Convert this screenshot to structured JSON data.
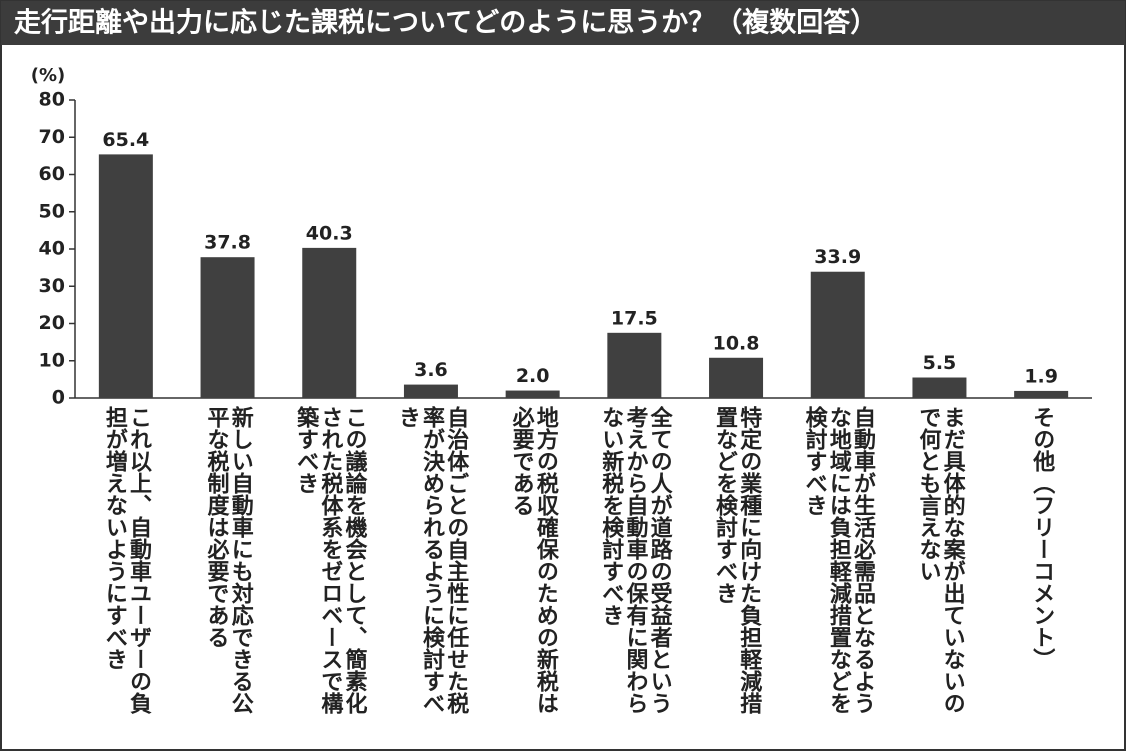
{
  "chart_data": {
    "type": "bar",
    "title": "走行距離や出力に応じた課税についてどのように思うか？（複数回答）",
    "y_label": "(%)",
    "categories": [
      "これ以上、自動車ユーザーの負担が増えないようにすべき",
      "新しい自動車にも対応できる公平な税制度は必要である",
      "この議論を機会として、簡素化された税体系をゼロベースで構築すべき",
      "自治体ごとの自主性に任せた税率が決められるように検討すべき",
      "地方の税収確保のための新税は必要である",
      "全ての人が道路の受益者という考えから自動車の保有に関わらない新税を検討すべき",
      "特定の業種に向けた負担軽減措置などを検討すべき",
      "自動車が生活必需品となるような地域には負担軽減措置などを検討すべき",
      "まだ具体的な案が出ていないので何とも言えない",
      "その他（フリーコメント）"
    ],
    "values": [
      65.4,
      37.8,
      40.3,
      3.6,
      2.0,
      17.5,
      10.8,
      33.9,
      5.5,
      1.9
    ],
    "value_labels": [
      "65.4",
      "37.8",
      "40.3",
      "3.6",
      "2.0",
      "17.5",
      "10.8",
      "33.9",
      "5.5",
      "1.9"
    ],
    "color": "#404040",
    "ylim": [
      0,
      80
    ],
    "yticks": [
      0,
      10,
      20,
      30,
      40,
      50,
      60,
      70,
      80
    ]
  }
}
